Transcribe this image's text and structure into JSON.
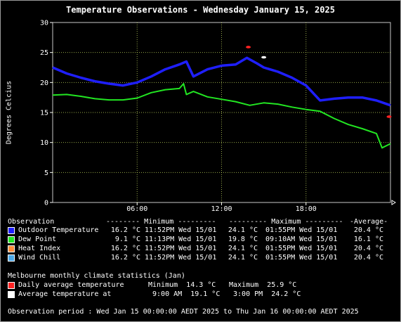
{
  "title": "Temperature Observations - Wednesday January 15, 2025",
  "chart_data": {
    "type": "line",
    "ylabel": "Degrees Celcius",
    "ylim": [
      0,
      30
    ],
    "yticks": [
      "0",
      "5",
      "10",
      "15",
      "20",
      "25",
      "30"
    ],
    "xlim": [
      0,
      24
    ],
    "xticks": [
      {
        "x": 6,
        "label": "06:00"
      },
      {
        "x": 12,
        "label": "12:00"
      },
      {
        "x": 18,
        "label": "18:00"
      }
    ],
    "grid": true,
    "series": [
      {
        "name": "Outdoor Temperature",
        "color": "#1f1fff",
        "x": [
          0,
          1,
          2,
          3,
          4,
          5,
          6,
          7,
          8,
          9,
          9.5,
          10,
          11,
          12,
          13,
          13.8,
          14.5,
          15,
          16,
          17,
          18,
          19,
          20,
          21,
          22,
          23,
          24
        ],
        "y": [
          22.5,
          21.5,
          20.8,
          20.2,
          19.8,
          19.5,
          20,
          21,
          22.2,
          23,
          23.5,
          21,
          22.2,
          22.8,
          23,
          24.1,
          23.2,
          22.5,
          21.8,
          20.8,
          19.5,
          17,
          17.3,
          17.5,
          17.5,
          17,
          16.2
        ]
      },
      {
        "name": "Dew Point",
        "color": "#22e622",
        "x": [
          0,
          1,
          2,
          3,
          4,
          5,
          6,
          7,
          8,
          9,
          9.3,
          9.5,
          10,
          11,
          12,
          13,
          14,
          15,
          16,
          17,
          18,
          19,
          20,
          21,
          22,
          23,
          23.4,
          24
        ],
        "y": [
          17.9,
          18,
          17.7,
          17.3,
          17.1,
          17.1,
          17.4,
          18.3,
          18.8,
          19,
          19.8,
          18,
          18.5,
          17.6,
          17.2,
          16.8,
          16.2,
          16.6,
          16.4,
          15.9,
          15.5,
          15.2,
          14,
          13,
          12.3,
          11.5,
          9.1,
          9.8
        ]
      }
    ],
    "markers": [
      {
        "name": "Daily average maximum",
        "x": 13.9,
        "y": 25.9,
        "color": "#ff2222"
      },
      {
        "name": "Average maximum at",
        "x": 15,
        "y": 24.2,
        "color": "#ffffff"
      },
      {
        "name": "Daily average minimum",
        "x": 23.9,
        "y": 14.3,
        "color": "#ff2222"
      }
    ]
  },
  "table": {
    "header": {
      "observation": "Observation",
      "minimum": "-------- Minimum ---------",
      "maximum": "--------- Maximum ---------",
      "average": "-Average-"
    },
    "rows": [
      {
        "label": "Outdoor Temperature",
        "color": "#1f1fff",
        "min_val": "16.2 °C",
        "min_time": "11:52PM Wed 15/01",
        "max_val": "24.1 °C",
        "max_time": "01:55PM Wed 15/01",
        "avg": "20.4 °C"
      },
      {
        "label": "Dew Point",
        "color": "#22e622",
        "min_val": "9.1 °C",
        "min_time": "11:13PM Wed 15/01",
        "max_val": "19.8 °C",
        "max_time": "09:10AM Wed 15/01",
        "avg": "16.1 °C"
      },
      {
        "label": "Heat Index",
        "color": "#ff8c3a",
        "min_val": "16.2 °C",
        "min_time": "11:52PM Wed 15/01",
        "max_val": "24.1 °C",
        "max_time": "01:55PM Wed 15/01",
        "avg": "20.4 °C"
      },
      {
        "label": "Wind Chill",
        "color": "#4aa8e8",
        "min_val": "16.2 °C",
        "min_time": "11:52PM Wed 15/01",
        "max_val": "24.1 °C",
        "max_time": "01:55PM Wed 15/01",
        "avg": "20.4 °C"
      }
    ]
  },
  "climate": {
    "heading": "Melbourne monthly climate statistics (Jan)",
    "rows": [
      {
        "label": "Daily average temperature",
        "color": "#ff2222",
        "col1": "Minimum  14.3 °C",
        "col2": "Maximum  25.9 °C"
      },
      {
        "label": "Average temperature at",
        "color": "#ffffff",
        "col1": " 9:00 AM  19.1 °C",
        "col2": " 3:00 PM  24.2 °C"
      }
    ]
  },
  "footer": "Observation period : Wed Jan 15 00:00:00 AEDT 2025 to Thu Jan 16 00:00:00 AEDT 2025"
}
